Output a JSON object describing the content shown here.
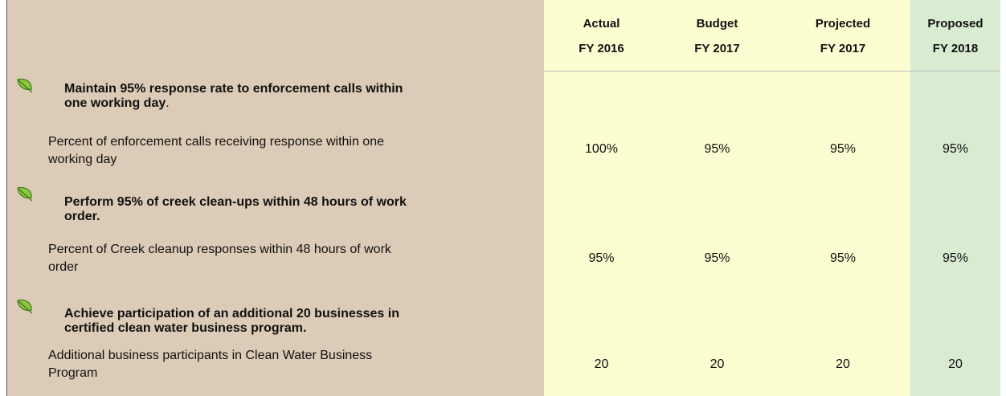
{
  "header": {
    "columns": [
      {
        "line1": "Actual",
        "line2": "FY 2016"
      },
      {
        "line1": "Budget",
        "line2": "FY 2017"
      },
      {
        "line1": "Projected",
        "line2": "FY 2017"
      },
      {
        "line1": "Proposed",
        "line2": "FY 2018"
      }
    ]
  },
  "rows": [
    {
      "goal": [
        "Maintain 95% response rate to enforcement calls within",
        "one working day"
      ],
      "goal_tail": ".",
      "measure": [
        "Percent of enforcement calls receiving response within one",
        "working day"
      ],
      "values": [
        "100%",
        "95%",
        "95%",
        "95%"
      ]
    },
    {
      "goal": [
        "Perform 95% of creek clean-ups within 48 hours of work",
        "order."
      ],
      "goal_tail": "",
      "measure": [
        "Percent of Creek cleanup responses within 48 hours of work",
        "order"
      ],
      "values": [
        "95%",
        "95%",
        "95%",
        "95%"
      ]
    },
    {
      "goal": [
        "Achieve participation of an additional 20 businesses in",
        "certified clean water business program."
      ],
      "goal_tail": "",
      "measure": [
        "Additional business participants in Clean Water Business",
        "Program"
      ],
      "values": [
        "20",
        "20",
        "20",
        "20"
      ]
    }
  ]
}
